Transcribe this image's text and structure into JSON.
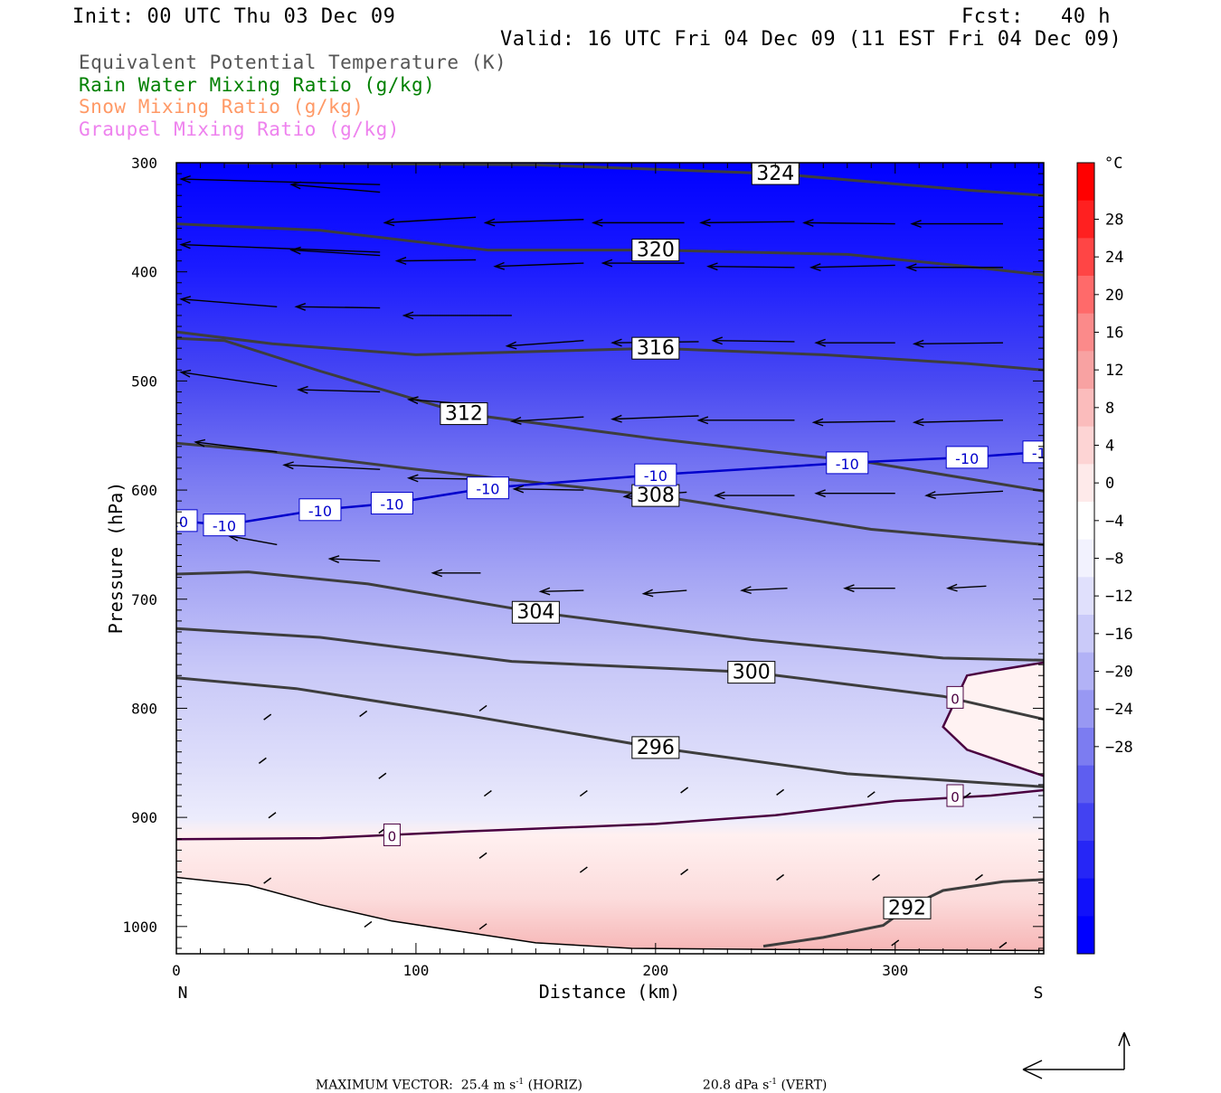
{
  "header": {
    "init": "Init: 00 UTC Thu 03 Dec 09",
    "fcst": "Fcst:   40 h",
    "valid": "Valid: 16 UTC Fri 04 Dec 09 (11 EST Fri 04 Dec 09)"
  },
  "legend": [
    {
      "label": "Equivalent Potential Temperature (K)",
      "color": "#555555"
    },
    {
      "label": "Rain Water Mixing Ratio (g/kg)",
      "color": "#008000"
    },
    {
      "label": "Snow Mixing Ratio (g/kg)",
      "color": "#ff9966"
    },
    {
      "label": "Graupel Mixing Ratio (g/kg)",
      "color": "#ee82ee"
    }
  ],
  "chart_data": {
    "type": "cross-section",
    "xlabel": "Distance (km)",
    "ylabel": "Pressure (hPa)",
    "xlim": [
      0,
      362
    ],
    "ylim": [
      300,
      1025
    ],
    "xticks": [
      0,
      100,
      200,
      300
    ],
    "yticks": [
      300,
      400,
      500,
      600,
      700,
      800,
      900,
      1000
    ],
    "x_end_labels": {
      "left": "N",
      "right": "S"
    },
    "colorbar": {
      "unit": "°C",
      "ticks": [
        28,
        24,
        20,
        16,
        12,
        8,
        4,
        0,
        -4,
        -8,
        -12,
        -16,
        -20,
        -24,
        -28
      ]
    },
    "theta_e_contours": [
      {
        "value": 324,
        "points": [
          [
            20,
            300
          ],
          [
            150,
            302
          ],
          [
            250,
            310
          ],
          [
            330,
            325
          ],
          [
            362,
            330
          ]
        ]
      },
      {
        "value": 320,
        "points": [
          [
            0,
            356
          ],
          [
            60,
            362
          ],
          [
            130,
            380
          ],
          [
            200,
            380
          ],
          [
            280,
            384
          ],
          [
            330,
            395
          ],
          [
            362,
            403
          ]
        ]
      },
      {
        "value": 316,
        "points": [
          [
            0,
            455
          ],
          [
            40,
            466
          ],
          [
            100,
            476
          ],
          [
            200,
            470
          ],
          [
            270,
            476
          ],
          [
            330,
            484
          ],
          [
            362,
            490
          ]
        ]
      },
      {
        "value": 312,
        "points": [
          [
            0,
            461
          ],
          [
            20,
            463
          ],
          [
            60,
            491
          ],
          [
            120,
            530
          ],
          [
            200,
            553
          ],
          [
            290,
            575
          ],
          [
            362,
            601
          ]
        ]
      },
      {
        "value": 308,
        "points": [
          [
            0,
            557
          ],
          [
            40,
            565
          ],
          [
            100,
            581
          ],
          [
            200,
            605
          ],
          [
            290,
            636
          ],
          [
            362,
            650
          ]
        ]
      },
      {
        "value": 304,
        "points": [
          [
            0,
            677
          ],
          [
            30,
            675
          ],
          [
            80,
            686
          ],
          [
            150,
            712
          ],
          [
            240,
            737
          ],
          [
            320,
            754
          ],
          [
            362,
            756
          ]
        ]
      },
      {
        "value": 300,
        "points": [
          [
            0,
            727
          ],
          [
            60,
            735
          ],
          [
            140,
            757
          ],
          [
            240,
            767
          ],
          [
            320,
            789
          ],
          [
            362,
            810
          ]
        ]
      },
      {
        "value": 296,
        "points": [
          [
            0,
            772
          ],
          [
            50,
            782
          ],
          [
            120,
            806
          ],
          [
            200,
            836
          ],
          [
            280,
            860
          ],
          [
            362,
            872
          ]
        ]
      },
      {
        "value": 292,
        "points": [
          [
            245,
            1018
          ],
          [
            270,
            1010
          ],
          [
            295,
            999
          ],
          [
            305,
            983
          ],
          [
            320,
            967
          ],
          [
            345,
            959
          ],
          [
            362,
            957
          ]
        ]
      }
    ],
    "temperature_contours": [
      {
        "value": -10,
        "points": [
          [
            0,
            628
          ],
          [
            20,
            632
          ],
          [
            60,
            618
          ],
          [
            90,
            612
          ],
          [
            130,
            598
          ],
          [
            200,
            586
          ],
          [
            280,
            575
          ],
          [
            330,
            570
          ],
          [
            362,
            565
          ]
        ]
      },
      {
        "value": 0,
        "points": [
          [
            0,
            920
          ],
          [
            60,
            919
          ],
          [
            120,
            913
          ],
          [
            200,
            906
          ],
          [
            250,
            898
          ],
          [
            300,
            885
          ],
          [
            340,
            880
          ],
          [
            362,
            875
          ]
        ]
      },
      {
        "value": 0,
        "points": [
          [
            362,
            758
          ],
          [
            340,
            766
          ],
          [
            330,
            770
          ],
          [
            320,
            817
          ],
          [
            330,
            838
          ],
          [
            362,
            862
          ]
        ]
      }
    ],
    "vector_scale": {
      "max_horiz": "25.4 m s",
      "horiz_unit": "(HORIZ)",
      "max_vert": "20.8 dPa s",
      "vert_unit": "(VERT)",
      "prefix": "MAXIMUM VECTOR:",
      "exponent": "-1"
    }
  }
}
